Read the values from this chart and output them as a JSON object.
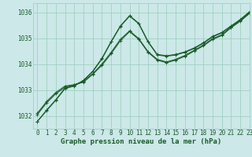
{
  "title": "Graphe pression niveau de la mer (hPa)",
  "bg_color": "#cce8e8",
  "grid_color": "#99ccbb",
  "line_color": "#1a5c2a",
  "xlim": [
    -0.5,
    23
  ],
  "ylim": [
    1031.5,
    1036.35
  ],
  "yticks": [
    1032,
    1033,
    1034,
    1035,
    1036
  ],
  "xticks": [
    0,
    1,
    2,
    3,
    4,
    5,
    6,
    7,
    8,
    9,
    10,
    11,
    12,
    13,
    14,
    15,
    16,
    17,
    18,
    19,
    20,
    21,
    22,
    23
  ],
  "series": [
    [
      1031.78,
      1032.2,
      1032.6,
      1033.05,
      1033.15,
      1033.35,
      1033.7,
      1034.2,
      1034.85,
      1035.45,
      1035.85,
      1035.55,
      1034.85,
      1034.35,
      1034.3,
      1034.35,
      1034.45,
      1034.6,
      1034.8,
      1035.05,
      1035.2,
      1035.45,
      1035.7,
      1036.0
    ],
    [
      1032.05,
      1032.5,
      1032.85,
      1033.1,
      1033.2,
      1033.3,
      1033.6,
      1033.95,
      1034.4,
      1034.9,
      1035.25,
      1034.95,
      1034.45,
      1034.15,
      1034.05,
      1034.15,
      1034.3,
      1034.5,
      1034.7,
      1034.95,
      1035.1,
      1035.4,
      1035.65,
      1035.95
    ],
    [
      1032.1,
      1032.55,
      1032.9,
      1033.15,
      1033.2,
      1033.32,
      1033.62,
      1034.0,
      1034.45,
      1034.95,
      1035.28,
      1034.98,
      1034.48,
      1034.18,
      1034.08,
      1034.18,
      1034.33,
      1034.53,
      1034.73,
      1034.98,
      1035.13,
      1035.42,
      1035.67,
      1035.97
    ],
    [
      1031.78,
      1032.22,
      1032.62,
      1033.07,
      1033.17,
      1033.37,
      1033.72,
      1034.22,
      1034.87,
      1035.47,
      1035.87,
      1035.57,
      1034.87,
      1034.37,
      1034.32,
      1034.37,
      1034.47,
      1034.62,
      1034.82,
      1035.07,
      1035.22,
      1035.47,
      1035.72,
      1036.02
    ]
  ],
  "marker": "+",
  "marker_size": 3.5,
  "linewidth": 0.8,
  "title_fontsize": 6.5,
  "tick_fontsize": 5.5
}
